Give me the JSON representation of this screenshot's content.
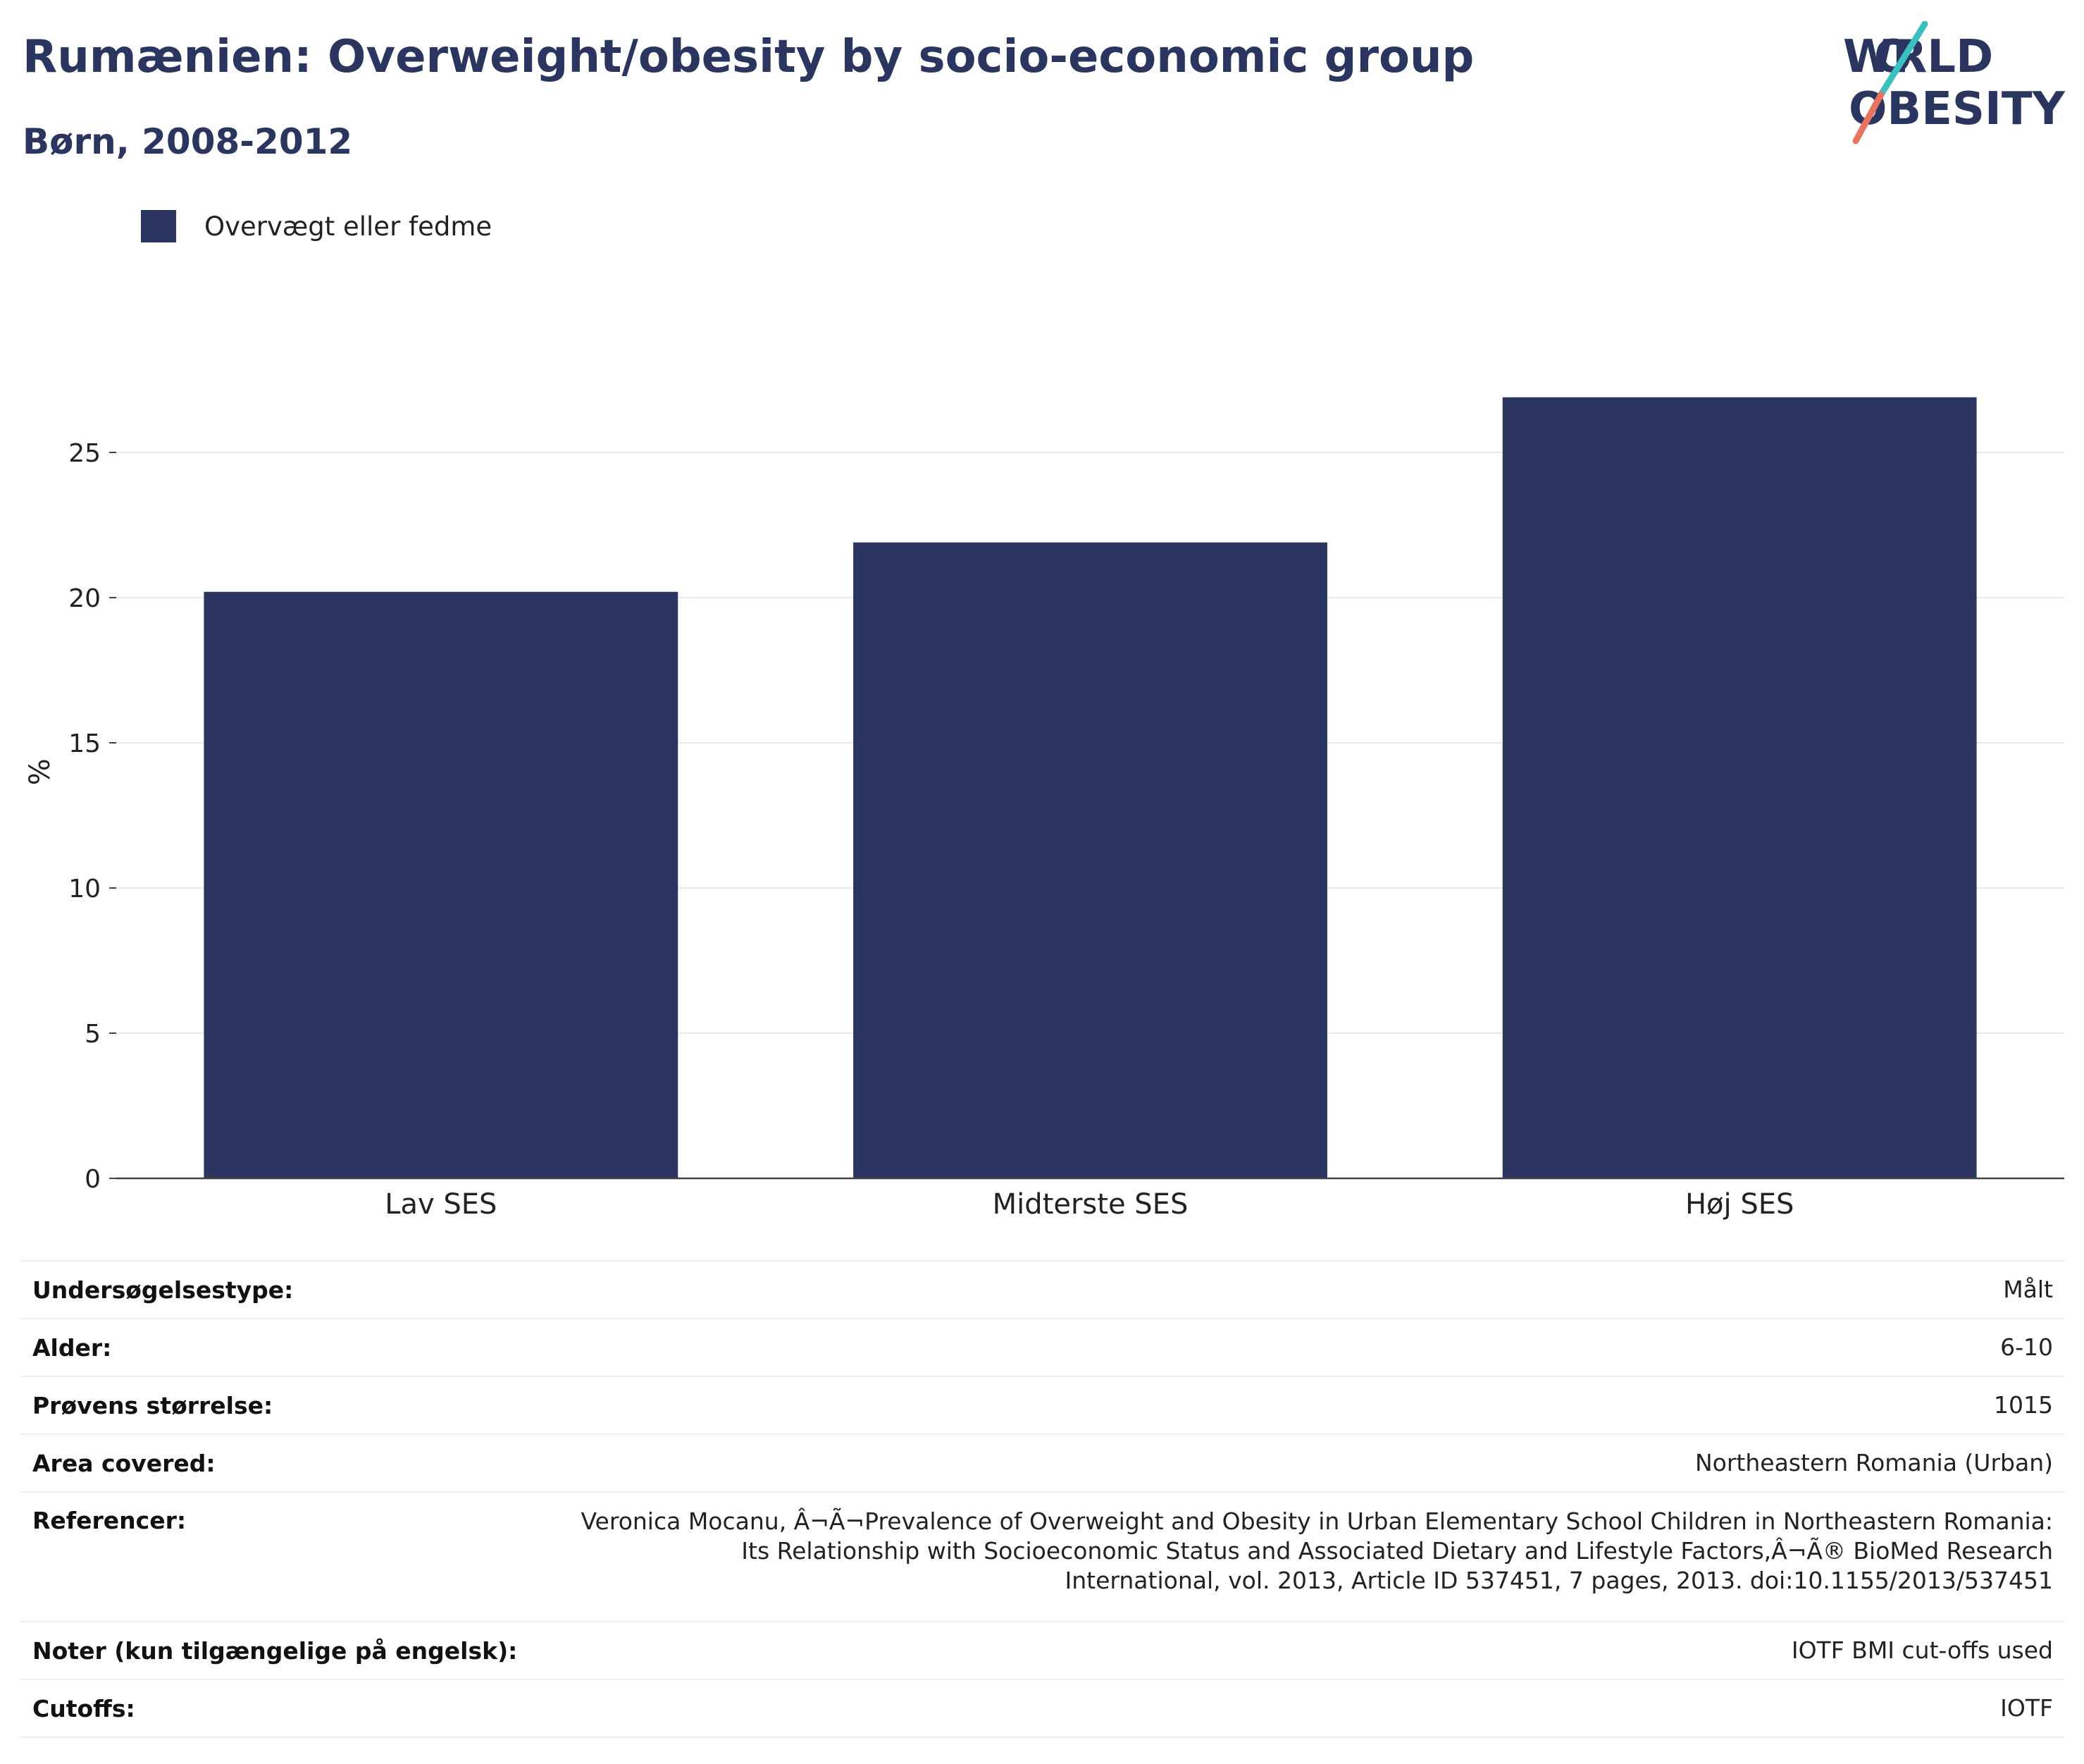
{
  "title": "Rumænien: Overweight/obesity by socio-economic group",
  "subtitle": "Børn, 2008-2012",
  "logo": {
    "line1": "WORLD",
    "line2": "OBESITY",
    "accent_colors": [
      "#3bbfc1",
      "#e8745f"
    ]
  },
  "chart_data": {
    "type": "bar",
    "categories": [
      "Lav SES",
      "Midterste SES",
      "Høj SES"
    ],
    "series": [
      {
        "name": "Overvægt eller fedme",
        "values": [
          20.2,
          21.9,
          26.9
        ],
        "color": "#2a365f"
      }
    ],
    "ylabel": "%",
    "xlabel": "",
    "ylim": [
      0,
      28
    ],
    "yticks": [
      0,
      5,
      10,
      15,
      20,
      25
    ],
    "grid": true,
    "legend_position": "top-left"
  },
  "info": [
    {
      "key": "Undersøgelsestype:",
      "value": "Målt"
    },
    {
      "key": "Alder:",
      "value": "6-10"
    },
    {
      "key": "Prøvens størrelse:",
      "value": "1015"
    },
    {
      "key": "Area covered:",
      "value": "Northeastern Romania (Urban)"
    },
    {
      "key": "Referencer:",
      "value": "Veronica Mocanu, Â¬Ã¬Prevalence of Overweight and Obesity in Urban Elementary School Children in Northeastern Romania: Its Relationship with Socioeconomic Status and Associated Dietary and Lifestyle Factors,Â¬Ã® BioMed Research International, vol. 2013, Article ID 537451, 7 pages, 2013. doi:10.1155/2013/537451"
    },
    {
      "key": "Noter (kun tilgængelige på engelsk):",
      "value": "IOTF BMI cut-offs used"
    },
    {
      "key": "Cutoffs:",
      "value": "IOTF"
    }
  ]
}
